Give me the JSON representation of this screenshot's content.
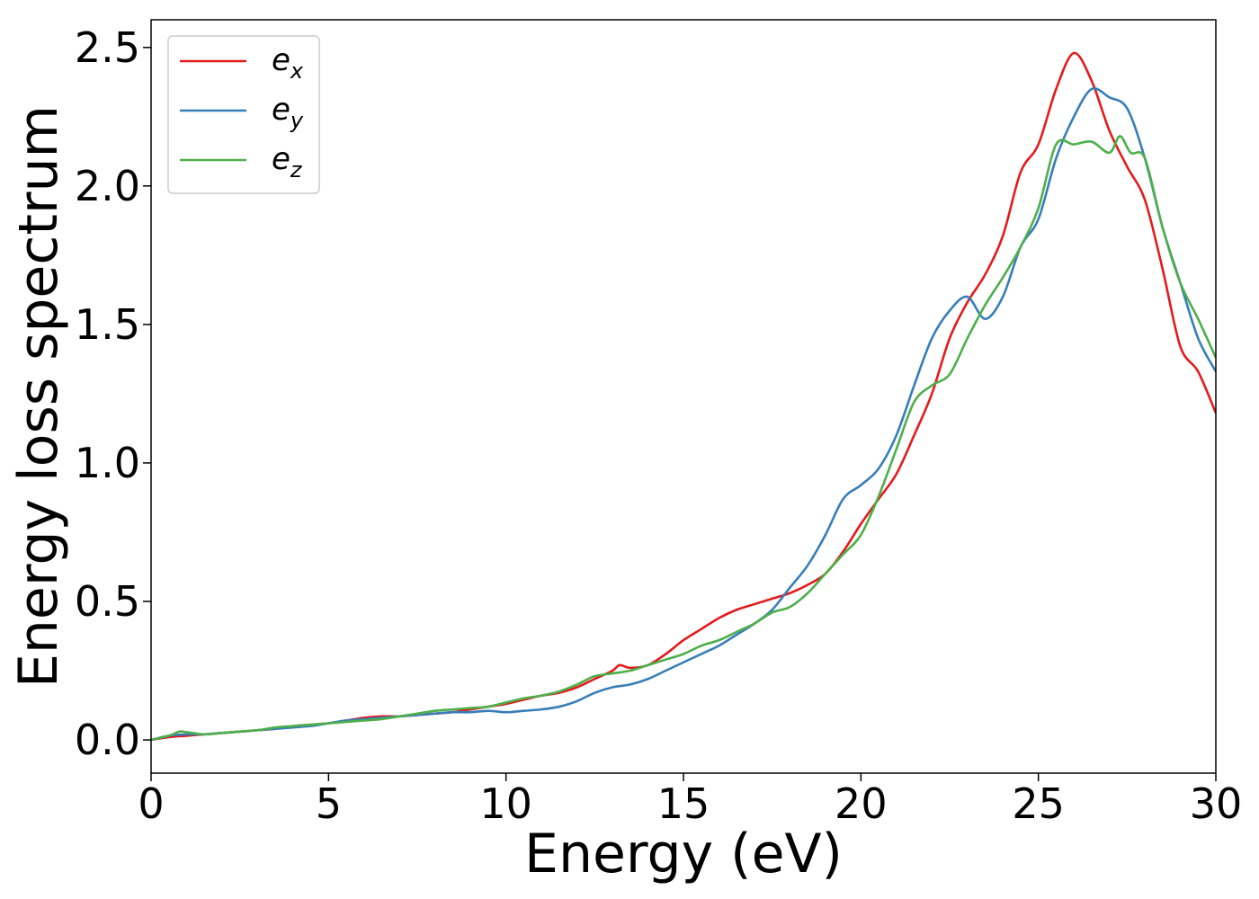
{
  "chart_data": {
    "type": "line",
    "xlabel": "Energy (eV)",
    "ylabel": "Energy loss spectrum",
    "xlim": [
      0,
      30
    ],
    "ylim": [
      -0.12,
      2.6
    ],
    "xticks": [
      "0",
      "5",
      "10",
      "15",
      "20",
      "25",
      "30"
    ],
    "yticks": [
      "0.0",
      "0.5",
      "1.0",
      "1.5",
      "2.0",
      "2.5"
    ],
    "grid": false,
    "legend_position": "top-left",
    "series": [
      {
        "name": "e",
        "subscript": "x",
        "color": "#e41a1c",
        "x": [
          0,
          0.5,
          1,
          1.5,
          2,
          2.5,
          3,
          3.5,
          4,
          4.5,
          5,
          5.5,
          6,
          6.5,
          7,
          7.5,
          8,
          8.5,
          9,
          9.5,
          10,
          10.5,
          11,
          11.5,
          12,
          12.5,
          13,
          13.2,
          13.5,
          14,
          14.5,
          15,
          15.5,
          16,
          16.5,
          17,
          17.5,
          18,
          18.5,
          19,
          19.5,
          20,
          20.5,
          21,
          21.5,
          22,
          22.5,
          23,
          23.5,
          24,
          24.5,
          25,
          25.5,
          26,
          26.5,
          27,
          27.5,
          28,
          28.5,
          29,
          29.5,
          30
        ],
        "y": [
          0.0,
          0.01,
          0.015,
          0.02,
          0.025,
          0.03,
          0.035,
          0.04,
          0.05,
          0.055,
          0.06,
          0.07,
          0.08,
          0.085,
          0.085,
          0.09,
          0.095,
          0.1,
          0.11,
          0.12,
          0.13,
          0.145,
          0.16,
          0.17,
          0.19,
          0.22,
          0.25,
          0.27,
          0.26,
          0.27,
          0.31,
          0.36,
          0.4,
          0.44,
          0.47,
          0.49,
          0.51,
          0.53,
          0.56,
          0.6,
          0.68,
          0.78,
          0.87,
          0.96,
          1.1,
          1.25,
          1.45,
          1.58,
          1.68,
          1.82,
          2.05,
          2.15,
          2.35,
          2.48,
          2.38,
          2.2,
          2.07,
          1.95,
          1.7,
          1.42,
          1.33,
          1.18
        ]
      },
      {
        "name": "e",
        "subscript": "y",
        "color": "#377eb8",
        "x": [
          0,
          0.5,
          1,
          1.5,
          2,
          2.5,
          3,
          3.5,
          4,
          4.5,
          5,
          5.5,
          6,
          6.5,
          7,
          7.5,
          8,
          8.5,
          9,
          9.5,
          10,
          10.5,
          11,
          11.5,
          12,
          12.5,
          13,
          13.5,
          14,
          14.5,
          15,
          15.5,
          16,
          16.5,
          17,
          17.5,
          18,
          18.5,
          19,
          19.5,
          20,
          20.5,
          21,
          21.5,
          22,
          22.5,
          23,
          23.5,
          24,
          24.5,
          25,
          25.5,
          26,
          26.5,
          27,
          27.5,
          28,
          28.5,
          29,
          29.5,
          30
        ],
        "y": [
          0.0,
          0.015,
          0.02,
          0.02,
          0.025,
          0.03,
          0.035,
          0.04,
          0.045,
          0.05,
          0.06,
          0.07,
          0.075,
          0.08,
          0.085,
          0.09,
          0.095,
          0.1,
          0.1,
          0.105,
          0.1,
          0.105,
          0.11,
          0.12,
          0.14,
          0.17,
          0.19,
          0.2,
          0.22,
          0.25,
          0.28,
          0.31,
          0.34,
          0.38,
          0.42,
          0.47,
          0.55,
          0.63,
          0.74,
          0.87,
          0.92,
          0.98,
          1.1,
          1.28,
          1.45,
          1.55,
          1.6,
          1.52,
          1.6,
          1.78,
          1.88,
          2.1,
          2.25,
          2.35,
          2.32,
          2.28,
          2.1,
          1.85,
          1.65,
          1.45,
          1.33
        ]
      },
      {
        "name": "e",
        "subscript": "z",
        "color": "#4daf4a",
        "x": [
          0,
          0.5,
          0.8,
          1,
          1.5,
          2,
          2.5,
          3,
          3.5,
          4,
          4.5,
          5,
          5.5,
          6,
          6.5,
          7,
          7.5,
          8,
          8.5,
          9,
          9.5,
          10,
          10.5,
          11,
          11.5,
          12,
          12.5,
          13,
          13.5,
          14,
          14.5,
          15,
          15.5,
          16,
          16.5,
          17,
          17.5,
          18,
          18.5,
          19,
          19.5,
          20,
          20.5,
          21,
          21.5,
          22,
          22.5,
          23,
          23.5,
          24,
          24.5,
          25,
          25.5,
          26,
          26.5,
          27,
          27.3,
          27.6,
          28,
          28.5,
          29,
          29.5,
          30
        ],
        "y": [
          0.0,
          0.015,
          0.03,
          0.028,
          0.02,
          0.025,
          0.03,
          0.035,
          0.045,
          0.05,
          0.055,
          0.06,
          0.065,
          0.07,
          0.075,
          0.085,
          0.095,
          0.105,
          0.11,
          0.115,
          0.12,
          0.135,
          0.15,
          0.16,
          0.175,
          0.2,
          0.23,
          0.24,
          0.25,
          0.27,
          0.29,
          0.31,
          0.34,
          0.36,
          0.39,
          0.42,
          0.46,
          0.48,
          0.53,
          0.6,
          0.67,
          0.74,
          0.88,
          1.05,
          1.22,
          1.28,
          1.32,
          1.45,
          1.57,
          1.67,
          1.78,
          1.92,
          2.15,
          2.15,
          2.16,
          2.12,
          2.18,
          2.12,
          2.1,
          1.85,
          1.65,
          1.52,
          1.38
        ]
      }
    ]
  }
}
